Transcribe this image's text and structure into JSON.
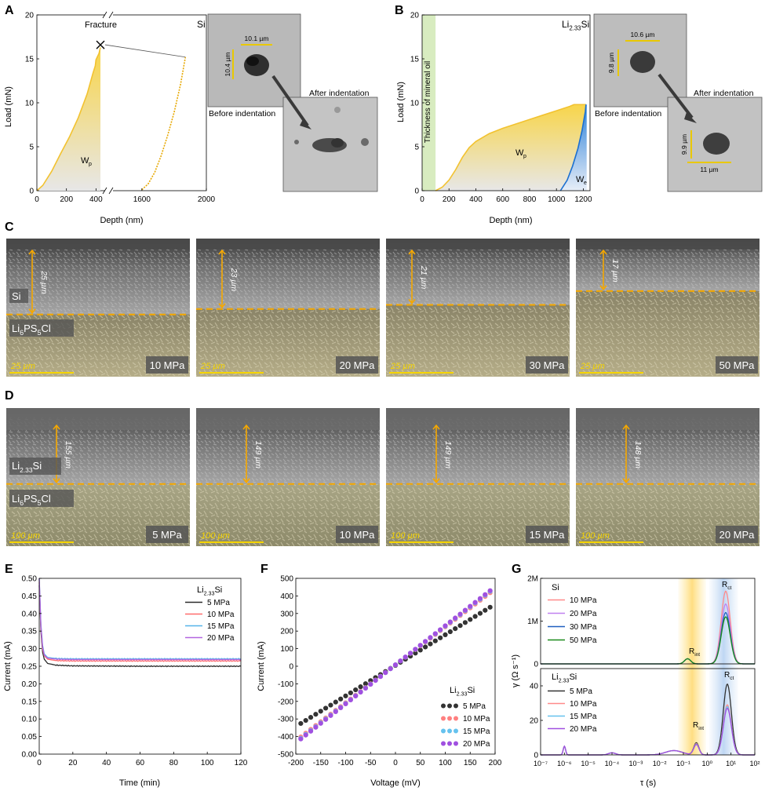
{
  "panels": {
    "A": {
      "letter": "A",
      "ylabel": "Load (mN)",
      "xlabel": "Depth (nm)",
      "yticks": [
        "0",
        "5",
        "10",
        "15",
        "20"
      ],
      "xticks": [
        "0",
        "200",
        "400",
        "1600",
        "2000"
      ],
      "material": "Si",
      "fracture": "Fracture",
      "wp": "W",
      "wp_sub": "p",
      "inset_before": {
        "caption": "Before indentation",
        "dim_w": "10.1 µm",
        "dim_h": "10.4 µm"
      },
      "inset_after": {
        "caption": "After indentation"
      }
    },
    "B": {
      "letter": "B",
      "ylabel": "Load (mN)",
      "xlabel": "Depth (nm)",
      "yticks": [
        "0",
        "5",
        "10",
        "15",
        "20"
      ],
      "xticks": [
        "0",
        "200",
        "400",
        "600",
        "800",
        "1000",
        "1200"
      ],
      "material": "Li",
      "material_sub": "2.33",
      "material_tail": "Si",
      "oil": "Thickness of mineral oil",
      "wp": "W",
      "wp_sub": "p",
      "we": "W",
      "we_sub": "e",
      "inset_before": {
        "caption": "Before indentation",
        "dim_w": "10.6 µm",
        "dim_h": "9.8 µm"
      },
      "inset_after": {
        "caption": "After indentation",
        "dim_w": "11 µm",
        "dim_h": "9.9 µm"
      }
    },
    "C": {
      "letter": "C",
      "top_label": "Si",
      "bottom_label": "Li",
      "bottom_sub1": "6",
      "bottom_mid": "PS",
      "bottom_sub2": "5",
      "bottom_tail": "Cl",
      "images": [
        {
          "thickness": "25 µm",
          "pressure": "10 MPa",
          "scale": "25 µm"
        },
        {
          "thickness": "23 µm",
          "pressure": "20 MPa",
          "scale": "25 µm"
        },
        {
          "thickness": "21 µm",
          "pressure": "30 MPa",
          "scale": "25 µm"
        },
        {
          "thickness": "17 µm",
          "pressure": "50 MPa",
          "scale": "25 µm"
        }
      ]
    },
    "D": {
      "letter": "D",
      "top_label": "Li",
      "top_sub": "2.33",
      "top_tail": "Si",
      "bottom_label": "Li",
      "bottom_sub1": "6",
      "bottom_mid": "PS",
      "bottom_sub2": "5",
      "bottom_tail": "Cl",
      "images": [
        {
          "thickness": "155 µm",
          "pressure": "5 MPa",
          "scale": "100 µm"
        },
        {
          "thickness": "149 µm",
          "pressure": "10 MPa",
          "scale": "100 µm"
        },
        {
          "thickness": "149 µm",
          "pressure": "15 MPa",
          "scale": "100 µm"
        },
        {
          "thickness": "148 µm",
          "pressure": "20 MPa",
          "scale": "100 µm"
        }
      ]
    },
    "E": {
      "letter": "E"
    },
    "F": {
      "letter": "F"
    },
    "G": {
      "letter": "G"
    }
  },
  "chart_data": [
    {
      "id": "A",
      "type": "line",
      "xlabel": "Depth (nm)",
      "ylabel": "Load (mN)",
      "xlim": [
        0,
        2000
      ],
      "ylim": [
        0,
        20
      ],
      "x_axis_break": [
        430,
        1450
      ],
      "series": [
        {
          "values": [
            [
              0,
              0
            ],
            [
              40,
              0.6
            ],
            [
              100,
              2.2
            ],
            [
              160,
              4.2
            ],
            [
              220,
              6.1
            ],
            [
              280,
              8.3
            ],
            [
              340,
              11.0
            ],
            [
              380,
              13.4
            ],
            [
              395,
              14.2
            ],
            [
              400,
              14.9
            ],
            [
              420,
              15.6
            ],
            [
              430,
              16.3
            ]
          ]
        },
        {
          "values": [
            [
              1600,
              0.1
            ],
            [
              1640,
              0.8
            ],
            [
              1680,
              2.1
            ],
            [
              1720,
              4.0
            ],
            [
              1760,
              6.3
            ],
            [
              1800,
              8.9
            ],
            [
              1840,
              12.1
            ],
            [
              1870,
              15.2
            ]
          ]
        }
      ]
    },
    {
      "id": "B",
      "type": "area",
      "xlabel": "Depth (nm)",
      "ylabel": "Load (mN)",
      "xlim": [
        0,
        1250
      ],
      "ylim": [
        0,
        20
      ],
      "series": [
        {
          "values": [
            [
              100,
              0
            ],
            [
              150,
              0.4
            ],
            [
              200,
              1.2
            ],
            [
              250,
              2.4
            ],
            [
              300,
              3.8
            ],
            [
              350,
              4.9
            ],
            [
              400,
              5.6
            ],
            [
              500,
              6.5
            ],
            [
              600,
              7.1
            ],
            [
              700,
              7.6
            ],
            [
              800,
              8.1
            ],
            [
              900,
              8.6
            ],
            [
              1000,
              9.1
            ],
            [
              1100,
              9.6
            ],
            [
              1130,
              9.8
            ],
            [
              1220,
              9.8
            ]
          ]
        },
        {
          "values": [
            [
              1030,
              0
            ],
            [
              1080,
              1.2
            ],
            [
              1120,
              2.8
            ],
            [
              1160,
              4.8
            ],
            [
              1190,
              6.8
            ],
            [
              1215,
              9.0
            ],
            [
              1220,
              9.8
            ]
          ]
        }
      ]
    },
    {
      "id": "E",
      "type": "line",
      "xlabel": "Time (min)",
      "ylabel": "Current (mA)",
      "xlim": [
        0,
        120
      ],
      "ylim": [
        0,
        0.5
      ],
      "xticks": [
        0,
        20,
        40,
        60,
        80,
        100,
        120
      ],
      "yticks": [
        0.0,
        0.05,
        0.1,
        0.15,
        0.2,
        0.25,
        0.3,
        0.35,
        0.4,
        0.45,
        0.5
      ],
      "legend_title": {
        "base": "Li",
        "sub": "2.33",
        "tail": "Si"
      },
      "legend_position": "top-right",
      "series": [
        {
          "name": "5 MPa",
          "color": "#2b2b2b",
          "values": [
            [
              0,
              0.48
            ],
            [
              1,
              0.35
            ],
            [
              2,
              0.29
            ],
            [
              3,
              0.27
            ],
            [
              5,
              0.258
            ],
            [
              10,
              0.253
            ],
            [
              20,
              0.251
            ],
            [
              60,
              0.25
            ],
            [
              120,
              0.25
            ]
          ]
        },
        {
          "name": "10 MPa",
          "color": "#ff6b6b",
          "values": [
            [
              0,
              0.49
            ],
            [
              1,
              0.36
            ],
            [
              2,
              0.3
            ],
            [
              3,
              0.28
            ],
            [
              5,
              0.27
            ],
            [
              10,
              0.266
            ],
            [
              20,
              0.265
            ],
            [
              60,
              0.265
            ],
            [
              120,
              0.265
            ]
          ]
        },
        {
          "name": "15 MPa",
          "color": "#56b4e9",
          "values": [
            [
              0,
              0.5
            ],
            [
              1,
              0.37
            ],
            [
              2,
              0.31
            ],
            [
              3,
              0.285
            ],
            [
              5,
              0.275
            ],
            [
              10,
              0.272
            ],
            [
              20,
              0.271
            ],
            [
              60,
              0.271
            ],
            [
              120,
              0.271
            ]
          ]
        },
        {
          "name": "20 MPa",
          "color": "#b366e0",
          "values": [
            [
              0,
              0.5
            ],
            [
              1,
              0.365
            ],
            [
              2,
              0.305
            ],
            [
              3,
              0.282
            ],
            [
              5,
              0.273
            ],
            [
              10,
              0.27
            ],
            [
              20,
              0.269
            ],
            [
              60,
              0.269
            ],
            [
              120,
              0.269
            ]
          ]
        }
      ]
    },
    {
      "id": "F",
      "type": "scatter",
      "xlabel": "Voltage (mV)",
      "ylabel": "Current (mA)",
      "xlim": [
        -200,
        200
      ],
      "ylim": [
        -500,
        500
      ],
      "xticks": [
        -200,
        -150,
        -100,
        -50,
        0,
        50,
        100,
        150,
        200
      ],
      "yticks": [
        -500,
        -400,
        -300,
        -200,
        -100,
        0,
        100,
        200,
        300,
        400,
        500
      ],
      "legend_title": {
        "base": "Li",
        "sub": "2.33",
        "tail": "Si"
      },
      "legend_position": "bottom-right",
      "x": [
        -190,
        -180,
        -170,
        -160,
        -150,
        -140,
        -130,
        -120,
        -110,
        -100,
        -90,
        -80,
        -70,
        -60,
        -50,
        -40,
        -30,
        -20,
        -10,
        0,
        10,
        20,
        30,
        40,
        50,
        60,
        70,
        80,
        90,
        100,
        110,
        120,
        130,
        140,
        150,
        160,
        170,
        180,
        190
      ],
      "series": [
        {
          "name": "5 MPa",
          "color": "#333333",
          "slope": 1.74
        },
        {
          "name": "10 MPa",
          "color": "#ff8080",
          "slope": 2.16
        },
        {
          "name": "15 MPa",
          "color": "#66c2ee",
          "slope": 2.2
        },
        {
          "name": "20 MPa",
          "color": "#a050e0",
          "slope": 2.22
        }
      ]
    },
    {
      "id": "G-top",
      "type": "line",
      "xlabel": "τ (s)",
      "ylabel": "γ (Ω s⁻¹)",
      "xscale": "log",
      "xlim": [
        1e-07,
        100
      ],
      "ylim": [
        0,
        2000000
      ],
      "yticks": [
        "0",
        "1M",
        "2M"
      ],
      "legend_title": "Si",
      "legend_position": "top-left",
      "annotations": [
        {
          "text": "R",
          "sub": "int"
        },
        {
          "text": "R",
          "sub": "ct"
        }
      ],
      "series": [
        {
          "name": "10 MPa",
          "color": "#ff8a8a",
          "peak_tau": 6,
          "peak": 1700000
        },
        {
          "name": "20 MPa",
          "color": "#c080f0",
          "peak_tau": 6,
          "peak": 1400000
        },
        {
          "name": "30 MPa",
          "color": "#1f5fbf",
          "peak_tau": 6,
          "peak": 1200000
        },
        {
          "name": "50 MPa",
          "color": "#1a8a1a",
          "peak_tau": 6,
          "peak": 1100000
        }
      ],
      "rint_peak": 120000
    },
    {
      "id": "G-bottom",
      "type": "line",
      "xlabel": "τ (s)",
      "ylabel": "γ (Ω s⁻¹)",
      "xscale": "log",
      "xlim": [
        1e-07,
        100
      ],
      "ylim": [
        0,
        50
      ],
      "yticks": [
        0,
        20,
        40
      ],
      "xticks": [
        "10⁻⁷",
        "10⁻⁶",
        "10⁻⁵",
        "10⁻⁴",
        "10⁻³",
        "10⁻²",
        "10⁻¹",
        "10⁰",
        "10¹",
        "10²"
      ],
      "legend_title": {
        "base": "Li",
        "sub": "2.33",
        "tail": "Si"
      },
      "legend_position": "top-left",
      "annotations": [
        {
          "text": "R",
          "sub": "int"
        },
        {
          "text": "R",
          "sub": "ct"
        }
      ],
      "series": [
        {
          "name": "5 MPa",
          "color": "#333333",
          "peak_tau": 7,
          "peak": 41,
          "rint": 7
        },
        {
          "name": "10 MPa",
          "color": "#ff8a8a",
          "peak_tau": 7,
          "peak": 29,
          "rint": 6.5
        },
        {
          "name": "15 MPa",
          "color": "#66c2ee",
          "peak_tau": 7,
          "peak": 28,
          "rint": 6.2
        },
        {
          "name": "20 MPa",
          "color": "#a050e0",
          "peak_tau": 7,
          "peak": 27,
          "rint": 6
        }
      ]
    }
  ]
}
